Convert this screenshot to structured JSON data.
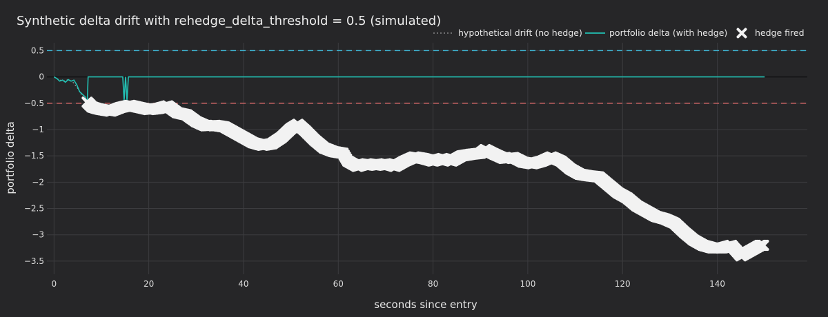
{
  "chart_data": {
    "type": "line",
    "title": "Synthetic delta drift with rehedge_delta_threshold = 0.5 (simulated)",
    "xlabel": "seconds since entry",
    "ylabel": "portfolio delta",
    "xlim": [
      -1.5,
      159
    ],
    "ylim": [
      -3.75,
      0.65
    ],
    "x_ticks": [
      0,
      20,
      40,
      60,
      80,
      100,
      120,
      140
    ],
    "y_ticks": [
      0.5,
      0,
      -0.5,
      -1,
      -1.5,
      -2,
      -2.5,
      -3,
      -3.5
    ],
    "y_tick_labels": [
      "0.5",
      "0",
      "−0.5",
      "−1",
      "−1.5",
      "−2",
      "−2.5",
      "−3",
      "−3.5"
    ],
    "grid": true,
    "legend_position": "top-right",
    "threshold_lines": [
      {
        "y": 0.5,
        "color": "#3fb7d6"
      },
      {
        "y": -0.5,
        "color": "#e06c6c"
      }
    ],
    "series": [
      {
        "name": "hypothetical drift (no hedge)",
        "style": "dotted",
        "color": "#9a9a9a",
        "points": [
          [
            0,
            0
          ],
          [
            1,
            -0.05
          ],
          [
            2,
            -0.08
          ],
          [
            3,
            -0.05
          ],
          [
            4,
            -0.1
          ],
          [
            5,
            -0.22
          ],
          [
            6,
            -0.37
          ],
          [
            7,
            -0.48
          ],
          [
            8,
            -0.57
          ],
          [
            9,
            -0.6
          ],
          [
            10,
            -0.62
          ],
          [
            12,
            -0.65
          ],
          [
            14,
            -0.58
          ],
          [
            16,
            -0.54
          ],
          [
            18,
            -0.58
          ],
          [
            20,
            -0.62
          ],
          [
            22,
            -0.6
          ],
          [
            24,
            -0.55
          ],
          [
            26,
            -0.68
          ],
          [
            28,
            -0.72
          ],
          [
            30,
            -0.85
          ],
          [
            32,
            -0.93
          ],
          [
            34,
            -0.92
          ],
          [
            36,
            -0.95
          ],
          [
            38,
            -1.05
          ],
          [
            40,
            -1.15
          ],
          [
            42,
            -1.25
          ],
          [
            44,
            -1.3
          ],
          [
            46,
            -1.27
          ],
          [
            48,
            -1.15
          ],
          [
            50,
            -0.98
          ],
          [
            51.5,
            -0.9
          ],
          [
            53,
            -1.02
          ],
          [
            55,
            -1.2
          ],
          [
            57,
            -1.35
          ],
          [
            59,
            -1.42
          ],
          [
            61,
            -1.45
          ],
          [
            62,
            -1.6
          ],
          [
            64,
            -1.7
          ],
          [
            66,
            -1.65
          ],
          [
            68,
            -1.68
          ],
          [
            70,
            -1.65
          ],
          [
            72,
            -1.7
          ],
          [
            74,
            -1.6
          ],
          [
            76,
            -1.52
          ],
          [
            78,
            -1.55
          ],
          [
            80,
            -1.6
          ],
          [
            82,
            -1.55
          ],
          [
            84,
            -1.6
          ],
          [
            86,
            -1.5
          ],
          [
            88,
            -1.47
          ],
          [
            90,
            -1.45
          ],
          [
            91,
            -1.38
          ],
          [
            93,
            -1.47
          ],
          [
            95,
            -1.55
          ],
          [
            97,
            -1.53
          ],
          [
            99,
            -1.62
          ],
          [
            101,
            -1.65
          ],
          [
            103,
            -1.6
          ],
          [
            105,
            -1.52
          ],
          [
            107,
            -1.6
          ],
          [
            109,
            -1.75
          ],
          [
            111,
            -1.85
          ],
          [
            113,
            -1.88
          ],
          [
            115,
            -1.9
          ],
          [
            117,
            -2.05
          ],
          [
            119,
            -2.2
          ],
          [
            121,
            -2.3
          ],
          [
            123,
            -2.45
          ],
          [
            125,
            -2.55
          ],
          [
            127,
            -2.65
          ],
          [
            129,
            -2.7
          ],
          [
            131,
            -2.78
          ],
          [
            133,
            -2.95
          ],
          [
            135,
            -3.1
          ],
          [
            137,
            -3.2
          ],
          [
            139,
            -3.25
          ],
          [
            141,
            -3.25
          ],
          [
            143,
            -3.2
          ],
          [
            145,
            -3.4
          ],
          [
            147,
            -3.3
          ],
          [
            149,
            -3.2
          ],
          [
            150,
            -3.2
          ]
        ]
      },
      {
        "name": "portfolio delta (with hedge)",
        "style": "solid",
        "color": "#22c1b4",
        "points": [
          [
            0,
            0
          ],
          [
            0.6,
            -0.03
          ],
          [
            1.2,
            -0.08
          ],
          [
            1.8,
            -0.06
          ],
          [
            2.4,
            -0.1
          ],
          [
            3,
            -0.05
          ],
          [
            3.6,
            -0.08
          ],
          [
            4.2,
            -0.06
          ],
          [
            4.8,
            -0.15
          ],
          [
            5.4,
            -0.28
          ],
          [
            6,
            -0.33
          ],
          [
            6.6,
            -0.38
          ],
          [
            7,
            -0.5
          ],
          [
            7.2,
            0
          ],
          [
            14.5,
            0
          ],
          [
            14.8,
            -0.45
          ],
          [
            15.1,
            0
          ],
          [
            15.4,
            -0.45
          ],
          [
            15.7,
            0
          ],
          [
            150,
            0
          ]
        ]
      },
      {
        "name": "hedge fired",
        "style": "marker",
        "color": "#f2f2f2",
        "points": []
      }
    ]
  }
}
